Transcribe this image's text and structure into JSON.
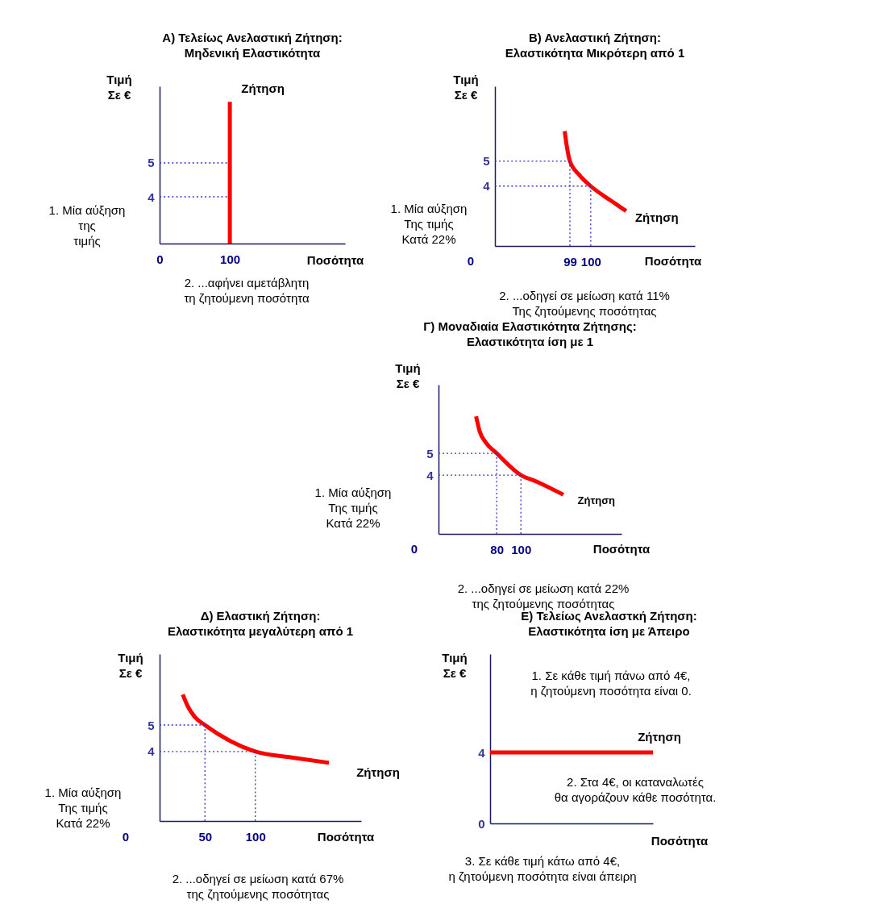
{
  "chart_data": [
    {
      "type": "line",
      "title": "Α) Τελείως Ανελαστική Ζήτηση:\nΜηδενική Ελαστικότητα",
      "xlabel": "Ποσότητα",
      "ylabel": "Τιμή\nΣε €",
      "xlim": [
        0,
        264
      ],
      "ylim": [
        2.62,
        7.26
      ],
      "xticks": [
        0,
        100
      ],
      "yticks": [
        4,
        5
      ],
      "series": [
        {
          "color": "#3333cc",
          "line_style": "dotted",
          "x": [
            0,
            96
          ],
          "values": [
            5,
            5
          ]
        },
        {
          "color": "#3333cc",
          "line_style": "dotted",
          "x": [
            0,
            96
          ],
          "values": [
            4,
            4
          ]
        },
        {
          "name": "Ζήτηση",
          "color": "#ff0000",
          "line_style": "solid",
          "x": [
            100,
            100
          ],
          "values": [
            2.62,
            6.8
          ]
        }
      ],
      "annotations": [
        "1. Μία αύξηση\nτης\nτιμής",
        "2. ...αφήνει αμετάβλητη\nτη ζητούμενη ποσότητα"
      ]
    },
    {
      "type": "line",
      "title": "Β) Ανελαστική Ζήτηση:\nΕλαστικότητα Μικρότερη από 1",
      "xlabel": "Ποσότητα",
      "ylabel": "Τιμή\nΣε €",
      "xlim": [
        95.4,
        105
      ],
      "ylim": [
        1.6,
        8
      ],
      "xticks": [
        99,
        100
      ],
      "yticks": [
        4,
        5
      ],
      "series": [
        {
          "name": "Ζήτηση",
          "color": "#ff0000",
          "line_style": "solid",
          "x": [
            98.75,
            98.85,
            99,
            99.45,
            100,
            101,
            101.7
          ],
          "values": [
            6.2,
            5.6,
            5,
            4.45,
            4,
            3.4,
            3.0
          ]
        },
        {
          "color": "#3333cc",
          "line_style": "dotted",
          "x": [
            95.4,
            99
          ],
          "values": [
            5,
            5
          ]
        },
        {
          "color": "#3333cc",
          "line_style": "dotted",
          "x": [
            99,
            99
          ],
          "values": [
            1.6,
            5
          ]
        },
        {
          "color": "#3333cc",
          "line_style": "dotted",
          "x": [
            95.4,
            100
          ],
          "values": [
            4,
            4
          ]
        },
        {
          "color": "#3333cc",
          "line_style": "dotted",
          "x": [
            100,
            100
          ],
          "values": [
            1.6,
            4
          ]
        }
      ],
      "annotations": [
        "1. Μία αύξηση\nΤης τιμής\nΚατά 22%",
        "2. ...οδηγεί σε μείωση κατά 11%\nΤης ζητούμενης ποσότητας",
        "0"
      ]
    },
    {
      "type": "line",
      "title": "Γ) Μοναδιαία Ελαστικότητα Ζήτησης:\nΕλαστικότητα ίση με 1",
      "xlabel": "Ποσότητα",
      "ylabel": "Τιμή\nΣε €",
      "xlim": [
        32,
        183
      ],
      "ylim": [
        1.3,
        8.15
      ],
      "xticks": [
        80,
        100
      ],
      "yticks": [
        4,
        5
      ],
      "series": [
        {
          "name": "Ζήτηση",
          "color": "#ff0000",
          "line_style": "solid",
          "x": [
            63,
            66,
            71,
            80,
            100,
            113,
            135
          ],
          "values": [
            6.7,
            6.0,
            5.5,
            5,
            4,
            3.7,
            3.1
          ]
        },
        {
          "color": "#3333cc",
          "line_style": "dotted",
          "x": [
            32,
            80
          ],
          "values": [
            5,
            5
          ]
        },
        {
          "color": "#3333cc",
          "line_style": "dotted",
          "x": [
            80,
            80
          ],
          "values": [
            1.3,
            5
          ]
        },
        {
          "color": "#3333cc",
          "line_style": "dotted",
          "x": [
            32,
            100
          ],
          "values": [
            4,
            4
          ]
        },
        {
          "color": "#3333cc",
          "line_style": "dotted",
          "x": [
            100,
            100
          ],
          "values": [
            1.3,
            4
          ]
        }
      ],
      "annotations": [
        "1. Μία αύξηση\nΤης τιμής\nΚατά 22%",
        "2. ...οδηγεί σε μείωση κατά 22%\nτης ζητούμενης ποσότητας",
        "0"
      ]
    },
    {
      "type": "line",
      "title": "Δ) Ελαστική Ζήτηση:\nΕλαστικότητα μεγαλύτερη από 1",
      "xlabel": "Ποσότητα",
      "ylabel": "Τιμή\nΣε €",
      "xlim": [
        5,
        205
      ],
      "ylim": [
        1.39,
        7.67
      ],
      "xticks": [
        50,
        100
      ],
      "yticks": [
        4,
        5
      ],
      "series": [
        {
          "name": "Ζήτηση",
          "color": "#ff0000",
          "line_style": "solid",
          "x": [
            28,
            33,
            40,
            50,
            75,
            100,
            136,
            173
          ],
          "values": [
            6.15,
            5.7,
            5.3,
            5,
            4.4,
            4,
            3.78,
            3.58
          ]
        },
        {
          "color": "#3333cc",
          "line_style": "dotted",
          "x": [
            5,
            50
          ],
          "values": [
            5,
            5
          ]
        },
        {
          "color": "#3333cc",
          "line_style": "dotted",
          "x": [
            50,
            50
          ],
          "values": [
            1.39,
            5
          ]
        },
        {
          "color": "#3333cc",
          "line_style": "dotted",
          "x": [
            5,
            100
          ],
          "values": [
            4,
            4
          ]
        },
        {
          "color": "#3333cc",
          "line_style": "dotted",
          "x": [
            100,
            100
          ],
          "values": [
            1.39,
            4
          ]
        }
      ],
      "annotations": [
        "1. Μία αύξηση\nΤης τιμής\nΚατά 22%",
        "2. ...οδηγεί σε μείωση κατά 67%\nτης ζητούμενης ποσότητας",
        "0"
      ]
    },
    {
      "type": "line",
      "title": "Ε) Τελείως Ανελαστκή Ζήτηση:\nΕλαστικότητα ίση με Άπειρο",
      "xlabel": "Ποσότητα",
      "ylabel": "Τιμή\nΣε €",
      "categories": [
        null,
        null,
        null
      ],
      "ylim": [
        0,
        9.55
      ],
      "yticks": [
        0,
        4
      ],
      "tick_labels": "y",
      "series": [
        {
          "name": "Ζήτηση",
          "color": "#ff0000",
          "line_style": "solid",
          "values": [
            4,
            4,
            4
          ]
        }
      ],
      "annotations": [
        "1. Σε κάθε τιμή πάνω από 4€,\nη ζητούμενη ποσότητα είναι 0.",
        "2. Στα 4€, οι καταναλωτές\nθα αγοράζουν κάθε ποσότητα.",
        "3. Σε κάθε τιμή κάτω από 4€,\nη ζητούμενη ποσότητα είναι άπειρη"
      ]
    }
  ]
}
